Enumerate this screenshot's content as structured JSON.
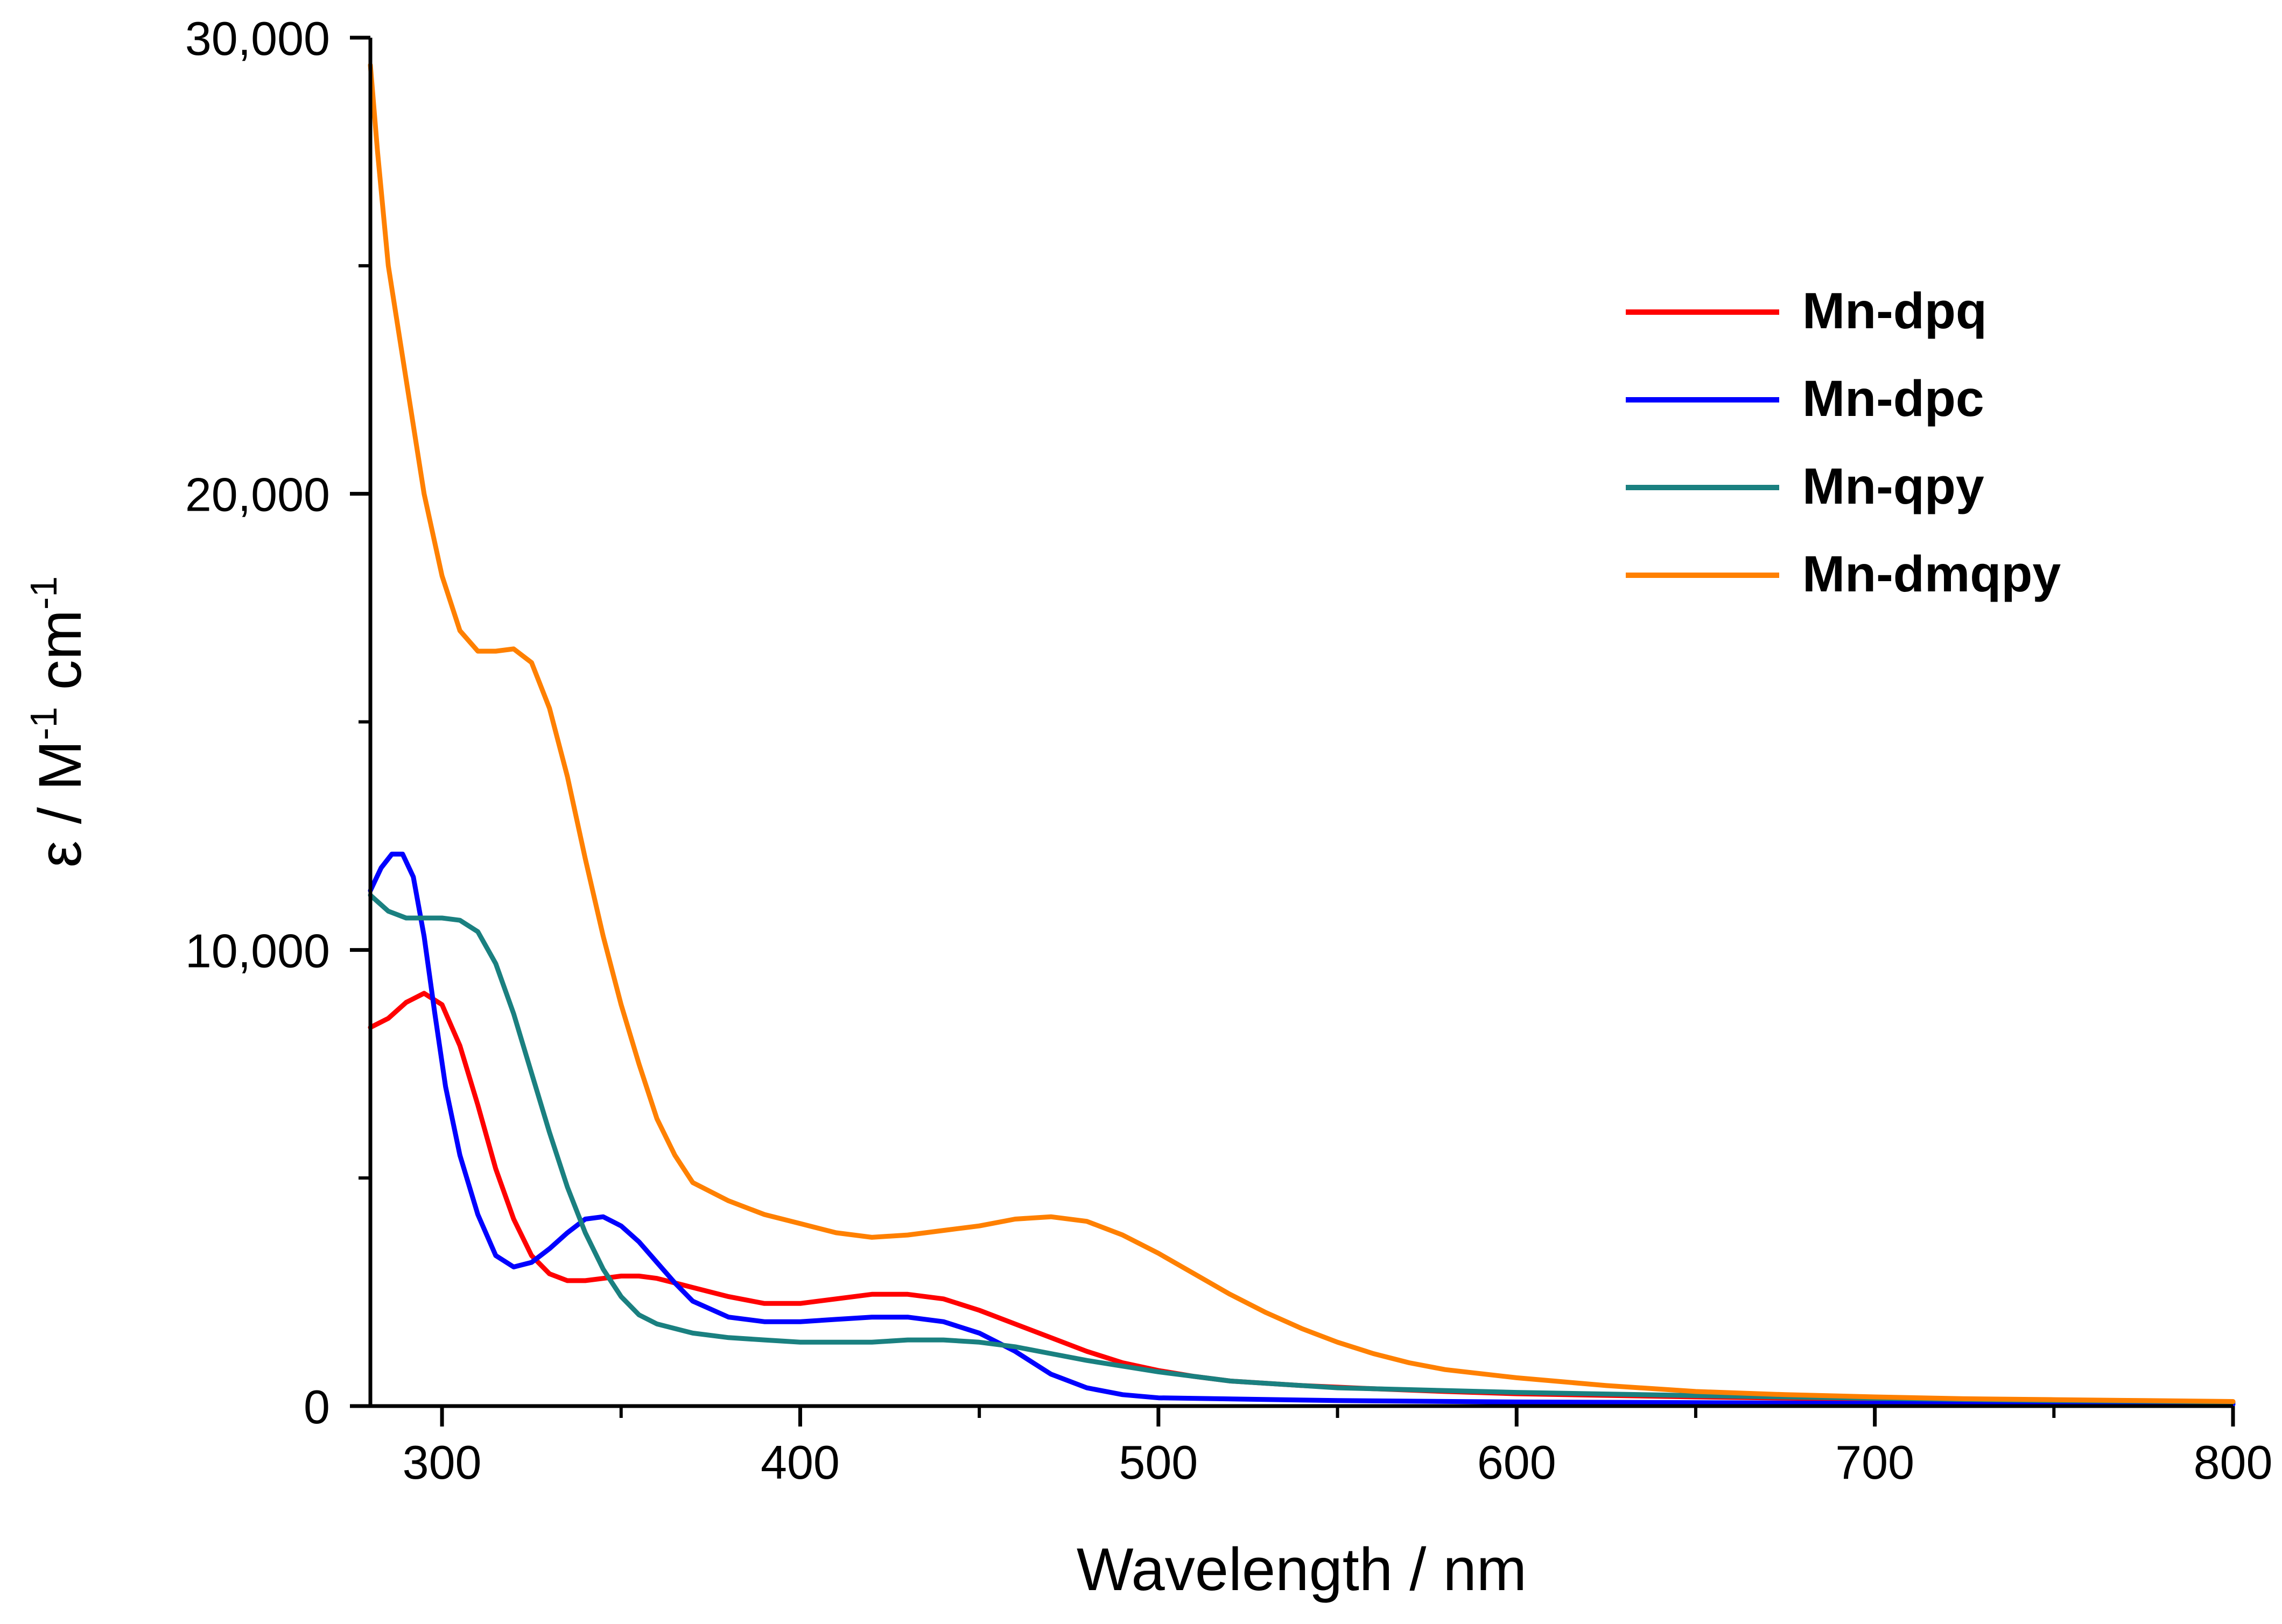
{
  "chart_data": {
    "type": "line",
    "title": "",
    "xlabel": "Wavelength / nm",
    "ylabel": {
      "epsilon": "ε / M",
      "exp1": "-1",
      "cm": " cm",
      "exp2": "-1"
    },
    "xlim": [
      280,
      800
    ],
    "ylim": [
      0,
      30000
    ],
    "x_ticks": [
      300,
      400,
      500,
      600,
      700,
      800
    ],
    "x_tick_labels": [
      "300",
      "400",
      "500",
      "600",
      "700",
      "800"
    ],
    "x_minor_ticks": [
      350,
      450,
      550,
      650,
      750
    ],
    "y_ticks": [
      0,
      10000,
      20000,
      30000
    ],
    "y_tick_labels": [
      "0",
      "10,000",
      "20,000",
      "30,000"
    ],
    "y_minor_ticks": [
      5000,
      15000,
      25000
    ],
    "legend_position": "top-right",
    "series": [
      {
        "name": "Mn-dpq",
        "color": "#ff0000",
        "points": [
          [
            280,
            8300
          ],
          [
            285,
            8500
          ],
          [
            290,
            8850
          ],
          [
            295,
            9050
          ],
          [
            300,
            8800
          ],
          [
            305,
            7900
          ],
          [
            310,
            6600
          ],
          [
            315,
            5200
          ],
          [
            320,
            4100
          ],
          [
            325,
            3300
          ],
          [
            330,
            2900
          ],
          [
            335,
            2750
          ],
          [
            340,
            2750
          ],
          [
            345,
            2800
          ],
          [
            350,
            2850
          ],
          [
            355,
            2850
          ],
          [
            360,
            2800
          ],
          [
            365,
            2700
          ],
          [
            370,
            2600
          ],
          [
            380,
            2400
          ],
          [
            390,
            2250
          ],
          [
            400,
            2250
          ],
          [
            410,
            2350
          ],
          [
            420,
            2450
          ],
          [
            430,
            2450
          ],
          [
            440,
            2350
          ],
          [
            450,
            2100
          ],
          [
            460,
            1800
          ],
          [
            470,
            1500
          ],
          [
            480,
            1200
          ],
          [
            490,
            950
          ],
          [
            500,
            780
          ],
          [
            510,
            650
          ],
          [
            520,
            550
          ],
          [
            540,
            450
          ],
          [
            560,
            380
          ],
          [
            580,
            320
          ],
          [
            600,
            270
          ],
          [
            650,
            200
          ],
          [
            700,
            150
          ],
          [
            750,
            110
          ],
          [
            800,
            80
          ]
        ]
      },
      {
        "name": "Mn-dpc",
        "color": "#0000ff",
        "points": [
          [
            280,
            11300
          ],
          [
            283,
            11800
          ],
          [
            286,
            12100
          ],
          [
            289,
            12100
          ],
          [
            292,
            11600
          ],
          [
            295,
            10300
          ],
          [
            298,
            8600
          ],
          [
            301,
            7000
          ],
          [
            305,
            5500
          ],
          [
            310,
            4200
          ],
          [
            315,
            3300
          ],
          [
            320,
            3050
          ],
          [
            325,
            3150
          ],
          [
            330,
            3450
          ],
          [
            335,
            3800
          ],
          [
            340,
            4100
          ],
          [
            345,
            4150
          ],
          [
            350,
            3950
          ],
          [
            355,
            3600
          ],
          [
            360,
            3150
          ],
          [
            365,
            2700
          ],
          [
            370,
            2300
          ],
          [
            380,
            1950
          ],
          [
            390,
            1850
          ],
          [
            400,
            1850
          ],
          [
            410,
            1900
          ],
          [
            420,
            1950
          ],
          [
            430,
            1950
          ],
          [
            440,
            1850
          ],
          [
            450,
            1600
          ],
          [
            460,
            1200
          ],
          [
            470,
            700
          ],
          [
            480,
            400
          ],
          [
            490,
            250
          ],
          [
            500,
            180
          ],
          [
            550,
            120
          ],
          [
            600,
            90
          ],
          [
            700,
            60
          ],
          [
            800,
            40
          ]
        ]
      },
      {
        "name": "Mn-qpy",
        "color": "#1a8080",
        "points": [
          [
            280,
            11200
          ],
          [
            285,
            10850
          ],
          [
            290,
            10700
          ],
          [
            300,
            10700
          ],
          [
            305,
            10650
          ],
          [
            310,
            10400
          ],
          [
            315,
            9700
          ],
          [
            320,
            8600
          ],
          [
            325,
            7300
          ],
          [
            330,
            6000
          ],
          [
            335,
            4800
          ],
          [
            340,
            3800
          ],
          [
            345,
            3000
          ],
          [
            350,
            2400
          ],
          [
            355,
            2000
          ],
          [
            360,
            1800
          ],
          [
            370,
            1600
          ],
          [
            380,
            1500
          ],
          [
            390,
            1450
          ],
          [
            400,
            1400
          ],
          [
            420,
            1400
          ],
          [
            430,
            1450
          ],
          [
            440,
            1450
          ],
          [
            450,
            1400
          ],
          [
            460,
            1300
          ],
          [
            470,
            1150
          ],
          [
            480,
            1000
          ],
          [
            500,
            750
          ],
          [
            520,
            550
          ],
          [
            550,
            400
          ],
          [
            600,
            300
          ],
          [
            650,
            230
          ],
          [
            700,
            170
          ],
          [
            750,
            120
          ],
          [
            800,
            90
          ]
        ]
      },
      {
        "name": "Mn-dmqpy",
        "color": "#ff8000",
        "points": [
          [
            280,
            29400
          ],
          [
            282,
            27500
          ],
          [
            285,
            25000
          ],
          [
            290,
            22500
          ],
          [
            295,
            20000
          ],
          [
            300,
            18200
          ],
          [
            305,
            17000
          ],
          [
            310,
            16550
          ],
          [
            315,
            16550
          ],
          [
            320,
            16600
          ],
          [
            325,
            16300
          ],
          [
            330,
            15300
          ],
          [
            335,
            13800
          ],
          [
            340,
            12000
          ],
          [
            345,
            10300
          ],
          [
            350,
            8800
          ],
          [
            355,
            7500
          ],
          [
            360,
            6300
          ],
          [
            365,
            5500
          ],
          [
            370,
            4900
          ],
          [
            380,
            4500
          ],
          [
            390,
            4200
          ],
          [
            400,
            4000
          ],
          [
            410,
            3800
          ],
          [
            420,
            3700
          ],
          [
            430,
            3750
          ],
          [
            440,
            3850
          ],
          [
            450,
            3950
          ],
          [
            460,
            4100
          ],
          [
            470,
            4150
          ],
          [
            480,
            4050
          ],
          [
            490,
            3750
          ],
          [
            500,
            3350
          ],
          [
            510,
            2900
          ],
          [
            520,
            2450
          ],
          [
            530,
            2050
          ],
          [
            540,
            1700
          ],
          [
            550,
            1400
          ],
          [
            560,
            1150
          ],
          [
            570,
            950
          ],
          [
            580,
            800
          ],
          [
            600,
            620
          ],
          [
            625,
            450
          ],
          [
            650,
            320
          ],
          [
            675,
            250
          ],
          [
            700,
            200
          ],
          [
            725,
            160
          ],
          [
            750,
            140
          ],
          [
            775,
            120
          ],
          [
            800,
            100
          ]
        ]
      }
    ]
  }
}
